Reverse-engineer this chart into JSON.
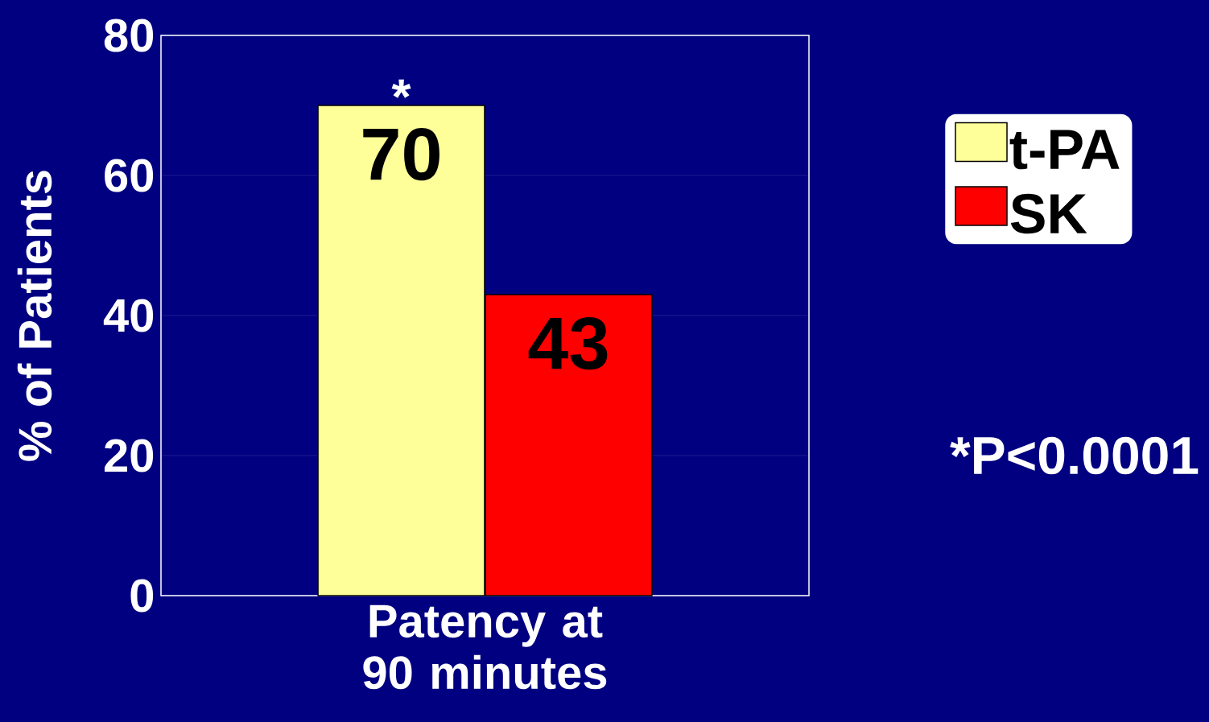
{
  "chart_data": {
    "type": "bar",
    "ylabel": "% of Patients",
    "categories": [
      "Patency at 90 minutes"
    ],
    "series": [
      {
        "name": "t-PA",
        "color": "#ffff99",
        "values": [
          70
        ]
      },
      {
        "name": "SK",
        "color": "#ff0000",
        "values": [
          43
        ]
      }
    ],
    "ylim": [
      0,
      80
    ],
    "yticks": [
      0,
      20,
      40,
      60,
      80
    ],
    "grid": "y",
    "legend": "top right",
    "data_labels": true,
    "annotations": [
      {
        "text": "*",
        "x": "Patency at 90 minutes",
        "y": 70
      },
      "*P<0.0001"
    ]
  }
}
